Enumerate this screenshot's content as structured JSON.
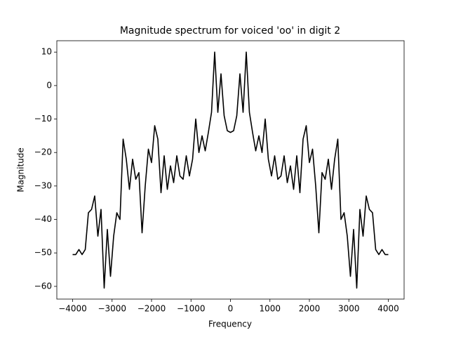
{
  "chart_data": {
    "type": "line",
    "title": "Magnitude spectrum for voiced 'oo' in digit 2",
    "xlabel": "Frequency",
    "ylabel": "Magnitude",
    "color": "#000000",
    "x": [
      -4000,
      -3920,
      -3840,
      -3760,
      -3680,
      -3600,
      -3520,
      -3440,
      -3360,
      -3280,
      -3200,
      -3120,
      -3040,
      -2960,
      -2880,
      -2800,
      -2720,
      -2640,
      -2560,
      -2480,
      -2400,
      -2320,
      -2240,
      -2160,
      -2080,
      -2000,
      -1920,
      -1840,
      -1760,
      -1680,
      -1600,
      -1520,
      -1440,
      -1360,
      -1280,
      -1200,
      -1120,
      -1040,
      -960,
      -880,
      -800,
      -720,
      -640,
      -560,
      -480,
      -400,
      -320,
      -240,
      -160,
      -80,
      0,
      80,
      160,
      240,
      320,
      400,
      480,
      560,
      640,
      720,
      800,
      880,
      960,
      1040,
      1120,
      1200,
      1280,
      1360,
      1440,
      1520,
      1600,
      1680,
      1760,
      1840,
      1920,
      2000,
      2080,
      2160,
      2240,
      2320,
      2400,
      2480,
      2560,
      2640,
      2720,
      2800,
      2880,
      2960,
      3040,
      3120,
      3200,
      3280,
      3360,
      3440,
      3520,
      3600,
      3680,
      3760,
      3840,
      3920,
      4000
    ],
    "values": [
      -50.5,
      -50.5,
      -49,
      -50.5,
      -49,
      -38,
      -37,
      -33,
      -45,
      -37,
      -60.5,
      -43,
      -57,
      -45,
      -38,
      -40,
      -16,
      -22,
      -31,
      -22,
      -28,
      -26,
      -44,
      -30,
      -19,
      -23,
      -12,
      -16,
      -32,
      -21,
      -31,
      -24,
      -29,
      -21,
      -27,
      -28,
      -21,
      -27,
      -22,
      -10,
      -20,
      -15,
      -19.5,
      -14,
      -8,
      10,
      -8,
      3.5,
      -9,
      -13.5,
      -14,
      -13.5,
      -9,
      3.5,
      -8,
      10,
      -8,
      -14,
      -19.5,
      -15,
      -20,
      -10,
      -22,
      -27,
      -21,
      -28,
      -27,
      -21,
      -29,
      -24,
      -31,
      -21,
      -32,
      -16,
      -12,
      -23,
      -19,
      -30,
      -44,
      -26,
      -28,
      -22,
      -31,
      -22,
      -16,
      -40,
      -38,
      -45,
      -57,
      -43,
      -60.5,
      -37,
      -45,
      -33,
      -37,
      -38,
      -49,
      -50.5,
      -49,
      -50.5,
      -50.5
    ],
    "xlim": [
      -4400,
      4400
    ],
    "ylim": [
      -63.8,
      13.4
    ],
    "xticks": [
      {
        "value": -4000,
        "label": "−4000"
      },
      {
        "value": -3000,
        "label": "−3000"
      },
      {
        "value": -2000,
        "label": "−2000"
      },
      {
        "value": -1000,
        "label": "−1000"
      },
      0,
      1000,
      2000,
      3000,
      4000
    ],
    "yticks": [
      10,
      0,
      {
        "value": -10,
        "label": "−10"
      },
      {
        "value": -20,
        "label": "−20"
      },
      {
        "value": -30,
        "label": "−30"
      },
      {
        "value": -40,
        "label": "−40"
      },
      {
        "value": -50,
        "label": "−50"
      },
      {
        "value": -60,
        "label": "−60"
      }
    ]
  }
}
